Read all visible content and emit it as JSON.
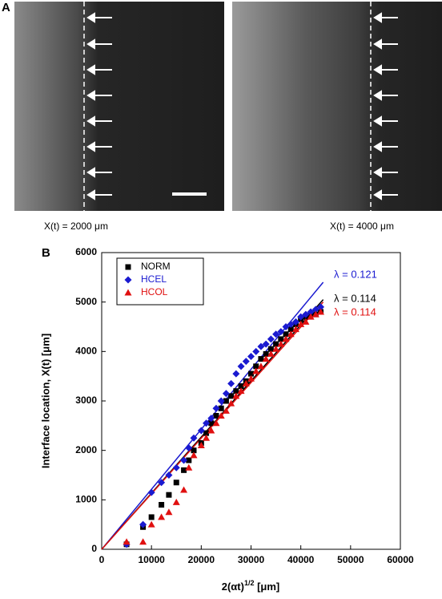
{
  "panel_a": {
    "label": "A",
    "captions": [
      "X(t) = 2000 μm",
      "X(t) = 4000 μm"
    ]
  },
  "chart_data": {
    "type": "scatter",
    "label": "B",
    "xlabel": [
      "2(αt)",
      "1/2",
      " [μm]"
    ],
    "ylabel": "Interface location, X(t) [μm]",
    "xlim": [
      0,
      60000
    ],
    "ylim": [
      0,
      6000
    ],
    "xticks": [
      0,
      10000,
      20000,
      30000,
      40000,
      50000,
      60000
    ],
    "yticks": [
      0,
      1000,
      2000,
      3000,
      4000,
      5000,
      6000
    ],
    "x": [
      5000,
      8300,
      10000,
      12000,
      13500,
      15000,
      16500,
      17500,
      18500,
      20000,
      21000,
      22000,
      23000,
      24000,
      25000,
      26000,
      27000,
      28000,
      29000,
      30000,
      31000,
      32000,
      33000,
      34000,
      35000,
      36000,
      37000,
      38000,
      39000,
      40000,
      41000,
      42000,
      43000,
      44000
    ],
    "series": [
      {
        "name": "NORM",
        "color": "#000000",
        "marker": "square",
        "values": [
          100,
          450,
          650,
          900,
          1100,
          1350,
          1600,
          1800,
          2000,
          2150,
          2350,
          2550,
          2700,
          2850,
          3000,
          3100,
          3200,
          3300,
          3400,
          3550,
          3700,
          3850,
          3950,
          4050,
          4150,
          4250,
          4350,
          4450,
          4550,
          4650,
          4700,
          4750,
          4750,
          4800
        ]
      },
      {
        "name": "HCEL",
        "color": "#1a1ad0",
        "marker": "diamond",
        "values": [
          100,
          500,
          1150,
          1350,
          1500,
          1650,
          1800,
          2050,
          2250,
          2400,
          2550,
          2650,
          2850,
          3000,
          3150,
          3350,
          3550,
          3700,
          3800,
          3900,
          4000,
          4100,
          4150,
          4250,
          4350,
          4400,
          4500,
          4550,
          4600,
          4700,
          4750,
          4800,
          4850,
          4900
        ]
      },
      {
        "name": "HCOL",
        "color": "#e01010",
        "marker": "triangle",
        "values": [
          150,
          150,
          500,
          650,
          750,
          950,
          1200,
          1650,
          1900,
          2100,
          2250,
          2400,
          2550,
          2700,
          2800,
          2950,
          3100,
          3200,
          3350,
          3450,
          3600,
          3700,
          3850,
          3950,
          4050,
          4150,
          4250,
          4350,
          4450,
          4550,
          4600,
          4700,
          4750,
          4800
        ]
      }
    ],
    "fits": [
      {
        "label": "λ = 0.121",
        "color": "#1a1ad0",
        "x": [
          0,
          44500
        ],
        "values": [
          0,
          5400
        ]
      },
      {
        "label": "λ = 0.114",
        "color": "#000000",
        "x": [
          0,
          44500
        ],
        "values": [
          0,
          5050
        ]
      },
      {
        "label": "λ = 0.114",
        "color": "#e01010",
        "x": [
          0,
          44500
        ],
        "values": [
          0,
          5000
        ]
      }
    ]
  }
}
